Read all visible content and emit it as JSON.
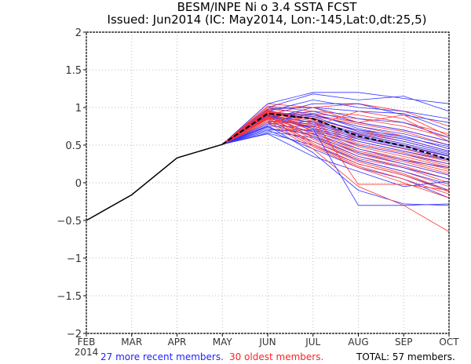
{
  "chart_data": {
    "type": "line",
    "title": "BESM/INPE Ni o 3.4 SSTA FCST",
    "subtitle": "Issued: Jun2014 (IC: May2014, Lon:-145,Lat:0,dt:25,5)",
    "xlabel": "",
    "ylabel": "",
    "categories": [
      "FEB",
      "MAR",
      "APR",
      "MAY",
      "JUN",
      "JUL",
      "AUG",
      "SEP",
      "OCT"
    ],
    "year_label": "2014",
    "ylim": [
      -2,
      2
    ],
    "yticks": [
      -2,
      -1.5,
      -1,
      -0.5,
      0,
      0.5,
      1,
      1.5,
      2
    ],
    "ytick_labels": [
      "-2",
      "-1.5",
      "-1",
      "-0.5",
      "0",
      "0.5",
      "1",
      "1.5",
      "2"
    ],
    "grid": true,
    "colors": {
      "observed": "#000000",
      "recent": "#3333ff",
      "oldest": "#ff3333",
      "mean": "#000000"
    },
    "observed": {
      "name": "Observed",
      "values": [
        -0.5,
        -0.16,
        0.33,
        0.51
      ]
    },
    "ensemble_mean": {
      "name": "Ensemble mean",
      "start_index": 3,
      "values": [
        0.51,
        0.92,
        0.85,
        0.62,
        0.49,
        0.31
      ]
    },
    "recent_members": {
      "name": "27 more recent members",
      "start_index": 3,
      "series": [
        [
          0.51,
          1.05,
          1.2,
          1.2,
          1.12,
          1.05
        ],
        [
          0.51,
          1.0,
          1.18,
          1.1,
          1.15,
          0.95
        ],
        [
          0.51,
          0.95,
          1.1,
          1.0,
          0.95,
          0.85
        ],
        [
          0.51,
          0.9,
          1.05,
          1.05,
          0.9,
          0.8
        ],
        [
          0.51,
          0.98,
          1.0,
          0.95,
          0.92,
          0.7
        ],
        [
          0.51,
          0.85,
          1.0,
          0.85,
          0.8,
          0.6
        ],
        [
          0.51,
          0.88,
          0.95,
          0.8,
          0.7,
          0.55
        ],
        [
          0.51,
          0.92,
          0.9,
          0.75,
          0.65,
          0.5
        ],
        [
          0.51,
          0.8,
          0.92,
          0.72,
          0.6,
          0.48
        ],
        [
          0.51,
          0.95,
          0.85,
          0.7,
          0.62,
          0.45
        ],
        [
          0.51,
          0.85,
          0.88,
          0.68,
          0.58,
          0.42
        ],
        [
          0.51,
          0.78,
          0.82,
          0.66,
          0.55,
          0.4
        ],
        [
          0.51,
          0.9,
          0.8,
          0.64,
          0.52,
          0.38
        ],
        [
          0.51,
          0.82,
          0.78,
          0.62,
          0.5,
          0.36
        ],
        [
          0.51,
          0.75,
          0.75,
          0.6,
          0.48,
          0.35
        ],
        [
          0.51,
          0.88,
          0.72,
          0.58,
          0.46,
          0.32
        ],
        [
          0.51,
          0.7,
          0.7,
          0.55,
          0.42,
          0.3
        ],
        [
          0.51,
          0.8,
          0.68,
          0.5,
          0.38,
          0.25
        ],
        [
          0.51,
          0.72,
          0.65,
          0.45,
          0.3,
          0.2
        ],
        [
          0.51,
          0.78,
          0.62,
          0.4,
          0.25,
          0.1
        ],
        [
          0.51,
          0.68,
          0.6,
          0.35,
          0.2,
          0.05
        ],
        [
          0.51,
          0.74,
          0.55,
          0.3,
          0.15,
          -0.02
        ],
        [
          0.51,
          0.66,
          0.5,
          0.25,
          0.1,
          -0.1
        ],
        [
          0.51,
          0.7,
          0.45,
          0.2,
          0.05,
          -0.2
        ],
        [
          0.51,
          0.76,
          0.4,
          -0.1,
          -0.28,
          -0.3
        ],
        [
          0.51,
          0.65,
          0.35,
          0.15,
          -0.05,
          0.02
        ],
        [
          0.51,
          0.9,
          0.72,
          -0.3,
          -0.3,
          -0.28
        ]
      ]
    },
    "oldest_members": {
      "name": "30 oldest members",
      "start_index": 3,
      "series": [
        [
          0.51,
          1.05,
          1.0,
          1.05,
          0.95,
          0.75
        ],
        [
          0.51,
          1.02,
          0.95,
          0.9,
          0.8,
          0.65
        ],
        [
          0.51,
          0.98,
          0.92,
          0.85,
          0.75,
          0.6
        ],
        [
          0.51,
          1.0,
          0.9,
          0.8,
          0.7,
          0.55
        ],
        [
          0.51,
          0.95,
          0.88,
          0.78,
          0.68,
          0.5
        ],
        [
          0.51,
          0.93,
          0.9,
          0.75,
          0.62,
          0.45
        ],
        [
          0.51,
          0.96,
          0.85,
          0.7,
          0.58,
          0.42
        ],
        [
          0.51,
          0.9,
          0.86,
          0.68,
          0.55,
          0.4
        ],
        [
          0.51,
          0.94,
          0.84,
          0.65,
          0.52,
          0.38
        ],
        [
          0.51,
          0.92,
          0.82,
          0.6,
          0.5,
          0.35
        ],
        [
          0.51,
          0.88,
          0.8,
          0.58,
          0.45,
          0.3
        ],
        [
          0.51,
          0.97,
          0.78,
          0.55,
          0.42,
          0.28
        ],
        [
          0.51,
          0.9,
          0.76,
          0.52,
          0.4,
          0.25
        ],
        [
          0.51,
          0.86,
          0.74,
          0.5,
          0.38,
          0.22
        ],
        [
          0.51,
          0.93,
          0.72,
          0.48,
          0.35,
          0.2
        ],
        [
          0.51,
          0.89,
          0.7,
          0.45,
          0.32,
          0.18
        ],
        [
          0.51,
          0.95,
          0.68,
          0.42,
          0.3,
          0.15
        ],
        [
          0.51,
          0.87,
          0.66,
          0.4,
          0.28,
          0.12
        ],
        [
          0.51,
          0.91,
          0.64,
          0.38,
          0.25,
          0.1
        ],
        [
          0.51,
          0.85,
          0.62,
          0.35,
          0.22,
          0.05
        ],
        [
          0.51,
          0.92,
          0.6,
          0.32,
          0.2,
          0.0
        ],
        [
          0.51,
          0.88,
          0.58,
          0.3,
          0.15,
          -0.05
        ],
        [
          0.51,
          0.84,
          0.55,
          0.28,
          0.12,
          -0.1
        ],
        [
          0.51,
          0.9,
          0.52,
          0.25,
          0.1,
          -0.12
        ],
        [
          0.51,
          0.86,
          0.5,
          0.22,
          0.05,
          -0.15
        ],
        [
          0.51,
          0.82,
          0.48,
          0.2,
          0.0,
          -0.2
        ],
        [
          0.51,
          0.8,
          0.45,
          -0.05,
          -0.3,
          -0.65
        ],
        [
          0.51,
          0.95,
          0.85,
          -0.02,
          -0.02,
          -0.1
        ],
        [
          0.51,
          1.0,
          1.0,
          0.8,
          0.9,
          0.62
        ],
        [
          0.51,
          0.85,
          0.75,
          0.95,
          0.85,
          0.55
        ]
      ]
    }
  },
  "footer": {
    "recent_label": "27 more recent members.",
    "oldest_label": "30 oldest members.",
    "total_label": "TOTAL: 57 members."
  }
}
